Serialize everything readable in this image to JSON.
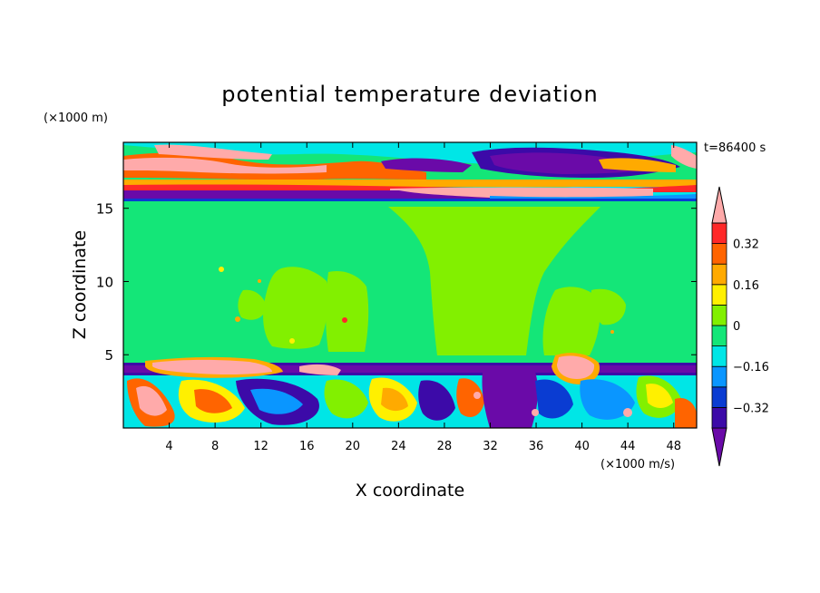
{
  "chart_data": {
    "type": "heatmap",
    "title": "potential temperature deviation",
    "xlabel": "X coordinate",
    "ylabel": "Z coordinate",
    "x_unit_label": "(×1000 m/s)",
    "y_unit_label": "(×1000 m)",
    "time_label": "t=86400 s",
    "xlim": [
      0,
      50
    ],
    "ylim": [
      0,
      19.5
    ],
    "x_ticks": [
      4,
      8,
      12,
      16,
      20,
      24,
      28,
      32,
      36,
      40,
      44,
      48
    ],
    "x_tick_labels": [
      "4",
      "8",
      "12",
      "16",
      "20",
      "24",
      "28",
      "32",
      "36",
      "40",
      "44",
      "48"
    ],
    "y_ticks": [
      5,
      10,
      15
    ],
    "y_tick_labels": [
      "5",
      "10",
      "15"
    ],
    "colorbar": {
      "levels": [
        -0.4,
        -0.32,
        -0.24,
        -0.16,
        -0.08,
        0,
        0.08,
        0.16,
        0.24,
        0.32,
        0.4
      ],
      "tick_values": [
        -0.32,
        -0.16,
        0,
        0.16,
        0.32
      ],
      "tick_labels": [
        "−0.32",
        "−0.16",
        "0",
        "0.16",
        "0.32"
      ],
      "colors": [
        "#6a0aa8",
        "#3c0aa8",
        "#0a3cd2",
        "#0a96ff",
        "#00e6e6",
        "#14e678",
        "#82f000",
        "#fff000",
        "#ffaa00",
        "#ff6400",
        "#ff2828",
        "#ffaaaa"
      ],
      "extend": "both"
    }
  }
}
